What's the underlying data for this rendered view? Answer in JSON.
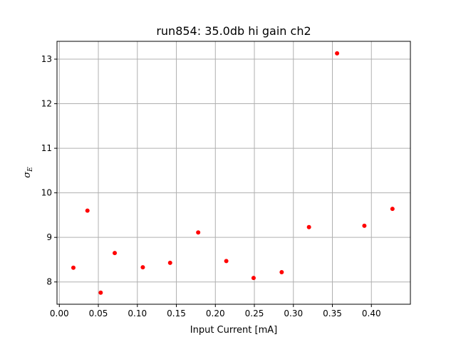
{
  "chart_data": {
    "type": "scatter",
    "title": "run854: 35.0db hi gain ch2",
    "xlabel": "Input Current [mA]",
    "ylabel": "σE",
    "ylabel_main": "σ",
    "ylabel_sub": "E",
    "xlim": [
      -0.003,
      0.45
    ],
    "ylim": [
      7.5,
      13.4
    ],
    "xticks": [
      0.0,
      0.05,
      0.1,
      0.15,
      0.2,
      0.25,
      0.3,
      0.35,
      0.4
    ],
    "xtick_labels": [
      "0.00",
      "0.05",
      "0.10",
      "0.15",
      "0.20",
      "0.25",
      "0.30",
      "0.35",
      "0.40"
    ],
    "yticks": [
      8,
      9,
      10,
      11,
      12,
      13
    ],
    "ytick_labels": [
      "8",
      "9",
      "10",
      "11",
      "12",
      "13"
    ],
    "grid": true,
    "marker_color": "#ff0000",
    "x": [
      0.018,
      0.036,
      0.053,
      0.071,
      0.107,
      0.142,
      0.178,
      0.214,
      0.249,
      0.285,
      0.32,
      0.356,
      0.391,
      0.427
    ],
    "y": [
      8.32,
      9.6,
      7.76,
      8.65,
      8.33,
      8.43,
      9.11,
      8.47,
      8.09,
      8.22,
      9.23,
      13.13,
      9.26,
      9.64
    ]
  }
}
